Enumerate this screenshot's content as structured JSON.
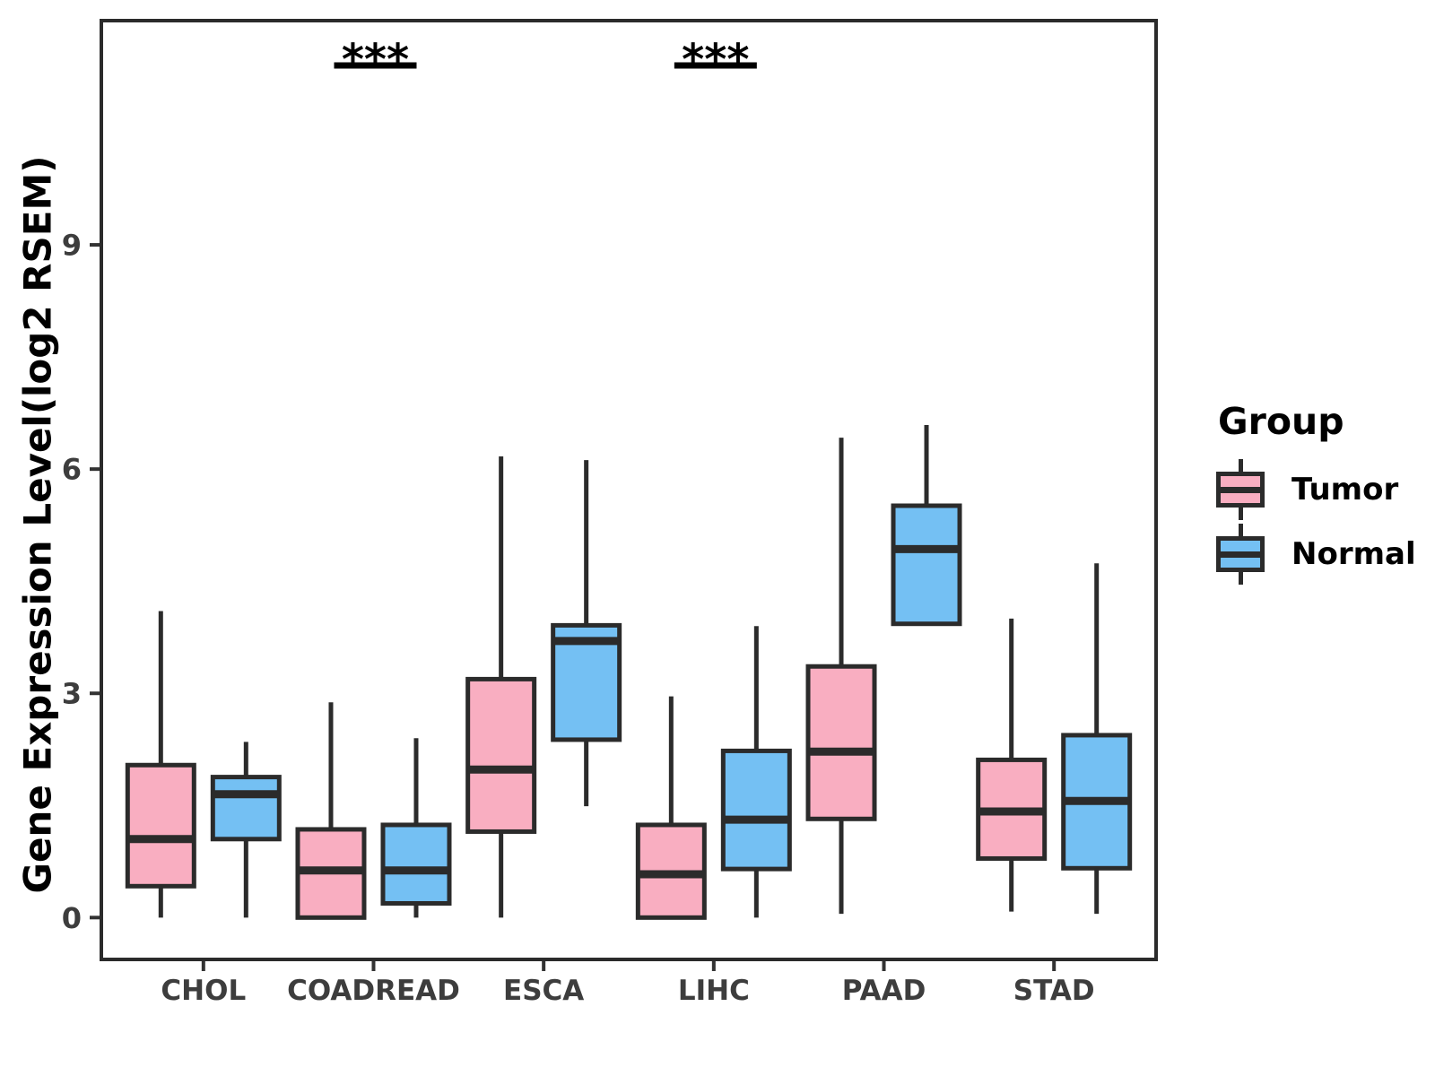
{
  "chart_data": {
    "type": "boxplot",
    "title": "",
    "ylabel": "Gene Expression Level(log2 RSEM)",
    "xlabel": "",
    "yticks": [
      0,
      3,
      6,
      9
    ],
    "ylim": [
      -0.56,
      12.0
    ],
    "grid": "off",
    "categories": [
      "CHOL",
      "COADREAD",
      "ESCA",
      "LIHC",
      "PAAD",
      "STAD"
    ],
    "series": [
      {
        "name": "Tumor",
        "color": "#F9AEC1",
        "boxes": [
          {
            "category": "CHOL",
            "low": 0.0,
            "q1": 0.42,
            "median": 1.05,
            "q3": 2.04,
            "high": 4.1
          },
          {
            "category": "COADREAD",
            "low": 0.0,
            "q1": 0.0,
            "median": 0.63,
            "q3": 1.18,
            "high": 2.88
          },
          {
            "category": "ESCA",
            "low": 0.0,
            "q1": 1.15,
            "median": 1.98,
            "q3": 3.19,
            "high": 6.17
          },
          {
            "category": "LIHC",
            "low": 0.0,
            "q1": 0.0,
            "median": 0.58,
            "q3": 1.24,
            "high": 2.96
          },
          {
            "category": "PAAD",
            "low": 0.05,
            "q1": 1.32,
            "median": 2.22,
            "q3": 3.36,
            "high": 6.42
          },
          {
            "category": "STAD",
            "low": 0.08,
            "q1": 0.79,
            "median": 1.42,
            "q3": 2.11,
            "high": 4.0
          }
        ]
      },
      {
        "name": "Normal",
        "color": "#74C0F3",
        "boxes": [
          {
            "category": "CHOL",
            "low": 0.0,
            "q1": 1.05,
            "median": 1.65,
            "q3": 1.88,
            "high": 2.35
          },
          {
            "category": "COADREAD",
            "low": 0.0,
            "q1": 0.19,
            "median": 0.63,
            "q3": 1.24,
            "high": 2.4
          },
          {
            "category": "ESCA",
            "low": 1.49,
            "q1": 2.38,
            "median": 3.7,
            "q3": 3.91,
            "high": 6.12
          },
          {
            "category": "LIHC",
            "low": 0.0,
            "q1": 0.65,
            "median": 1.31,
            "q3": 2.23,
            "high": 3.9
          },
          {
            "category": "PAAD",
            "low": 3.93,
            "q1": 3.93,
            "median": 4.93,
            "q3": 5.51,
            "high": 6.59
          },
          {
            "category": "STAD",
            "low": 0.05,
            "q1": 0.66,
            "median": 1.56,
            "q3": 2.44,
            "high": 4.74
          }
        ]
      }
    ],
    "significance": [
      {
        "category": "COADREAD",
        "label": "***",
        "y": 11.4
      },
      {
        "category": "LIHC",
        "label": "***",
        "y": 11.4
      }
    ],
    "legend": {
      "title": "Group",
      "position": "right",
      "items": [
        {
          "label": "Tumor",
          "color": "#F9AEC1"
        },
        {
          "label": "Normal",
          "color": "#74C0F3"
        }
      ]
    },
    "style": {
      "box_border_color": "#2B2B2B",
      "axis_color": "#333333",
      "tick_label_color": "#3D3D3D",
      "axis_title_color": "#000000",
      "significance_color": "#000000",
      "background": "#FFFFFF"
    }
  }
}
